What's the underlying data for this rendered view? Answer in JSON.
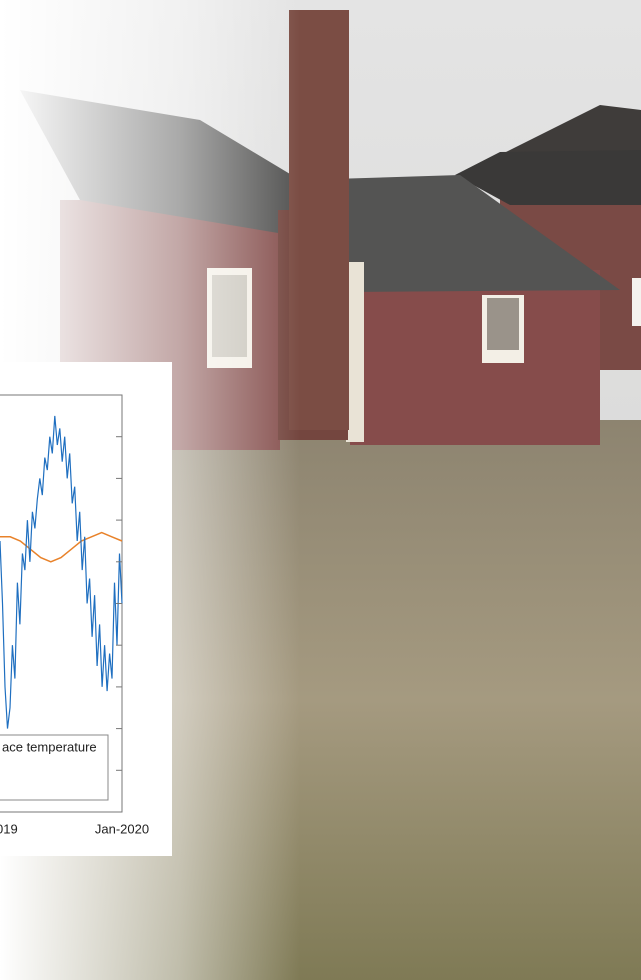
{
  "chart_data": {
    "type": "line",
    "legend_text": "ace temperature",
    "x_labels": [
      "019",
      "Jan-2020"
    ],
    "ylim": [
      0,
      10
    ],
    "series": [
      {
        "color": "#1f6fc0",
        "values": [
          6.5,
          5.0,
          3.0,
          2.0,
          2.5,
          4.0,
          3.2,
          5.5,
          4.5,
          6.2,
          5.8,
          7.0,
          6.0,
          7.2,
          6.8,
          7.5,
          8.0,
          7.6,
          8.5,
          8.2,
          9.0,
          8.6,
          9.5,
          8.8,
          9.2,
          8.4,
          9.0,
          8.0,
          8.6,
          7.4,
          7.8,
          6.5,
          7.2,
          5.8,
          6.6,
          5.0,
          5.6,
          4.2,
          5.2,
          3.5,
          4.5,
          3.0,
          4.0,
          2.9,
          3.8,
          3.2,
          5.5,
          4.0,
          6.2,
          5.0
        ]
      },
      {
        "color": "#e8822a",
        "values": [
          6.6,
          6.6,
          6.5,
          6.3,
          6.1,
          6.0,
          6.1,
          6.3,
          6.5,
          6.6,
          6.7,
          6.6,
          6.5
        ]
      }
    ]
  }
}
